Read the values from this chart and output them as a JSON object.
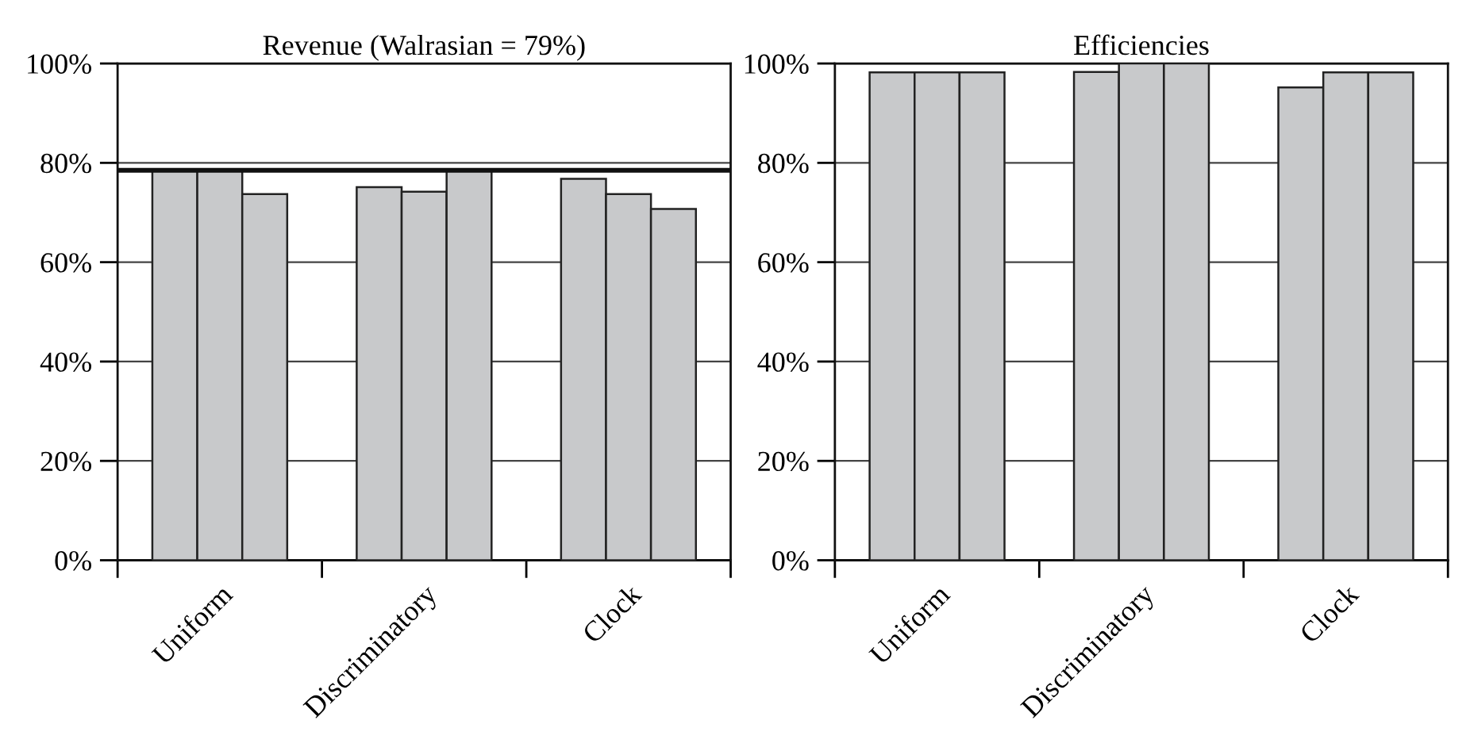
{
  "chart_data": [
    {
      "type": "bar",
      "title": "Revenue (Walrasian = 79%)",
      "categories": [
        "Uniform",
        "Discriminatory",
        "Clock"
      ],
      "series": [
        {
          "color": "#c8c9cb",
          "values": [
            78.5,
            75.1,
            76.8
          ]
        },
        {
          "color": "#c8c9cb",
          "values": [
            78.5,
            74.2,
            73.7
          ]
        },
        {
          "color": "#c8c9cb",
          "values": [
            73.7,
            78.5,
            70.7
          ]
        }
      ],
      "ylim": [
        0,
        100
      ],
      "yticks": [
        {
          "value": 0,
          "label": "0%"
        },
        {
          "value": 20,
          "label": "20%"
        },
        {
          "value": 40,
          "label": "40%"
        },
        {
          "value": 60,
          "label": "60%"
        },
        {
          "value": 80,
          "label": "80%"
        },
        {
          "value": 100,
          "label": "100%"
        }
      ],
      "grid": "y",
      "ref_lines": [
        {
          "axis": "y",
          "value": 78.5,
          "color": "#111111"
        }
      ]
    },
    {
      "type": "bar",
      "title": "Efficiencies",
      "categories": [
        "Uniform",
        "Discriminatory",
        "Clock"
      ],
      "series": [
        {
          "color": "#c8c9cb",
          "values": [
            98.2,
            98.3,
            95.2
          ]
        },
        {
          "color": "#c8c9cb",
          "values": [
            98.2,
            100,
            98.2
          ]
        },
        {
          "color": "#c8c9cb",
          "values": [
            98.2,
            100,
            98.2
          ]
        }
      ],
      "ylim": [
        0,
        100
      ],
      "yticks": [
        {
          "value": 0,
          "label": "0%"
        },
        {
          "value": 20,
          "label": "20%"
        },
        {
          "value": 40,
          "label": "40%"
        },
        {
          "value": 60,
          "label": "60%"
        },
        {
          "value": 80,
          "label": "80%"
        },
        {
          "value": 100,
          "label": "100%"
        }
      ],
      "grid": "y"
    }
  ]
}
